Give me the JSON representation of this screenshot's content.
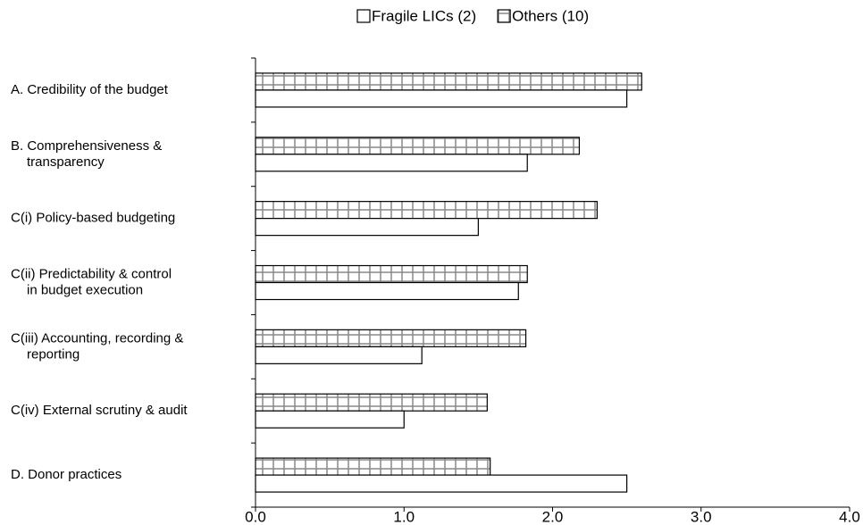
{
  "chart_data": {
    "type": "bar",
    "orientation": "horizontal",
    "categories": [
      "A.     Credibility of the budget",
      "B.   Comprehensiveness &\ntransparency",
      "C(i)   Policy-based budgeting",
      "C(ii)  Predictability & control\nin budget execution",
      "C(iii)  Accounting, recording &\nreporting",
      "C(iv)  External scrutiny & audit",
      "D.    Donor practices"
    ],
    "series": [
      {
        "name": "Fragile LICs (2)",
        "color": "#ffffff",
        "pattern": "none",
        "values": [
          2.5,
          1.83,
          1.5,
          1.77,
          1.12,
          1.0,
          2.5
        ]
      },
      {
        "name": "Others (10)",
        "color": "#ffffff",
        "pattern": "grid",
        "values": [
          2.6,
          2.18,
          2.3,
          1.83,
          1.82,
          1.56,
          1.58
        ]
      }
    ],
    "xlim": [
      0,
      4
    ],
    "xticks": [
      {
        "value": 0,
        "label": "0.0"
      },
      {
        "value": 1,
        "label": "1.0"
      },
      {
        "value": 2,
        "label": "2.0"
      },
      {
        "value": 3,
        "label": "3.0"
      },
      {
        "value": 4,
        "label": "4.0"
      }
    ],
    "grid": false,
    "legend": "top"
  }
}
